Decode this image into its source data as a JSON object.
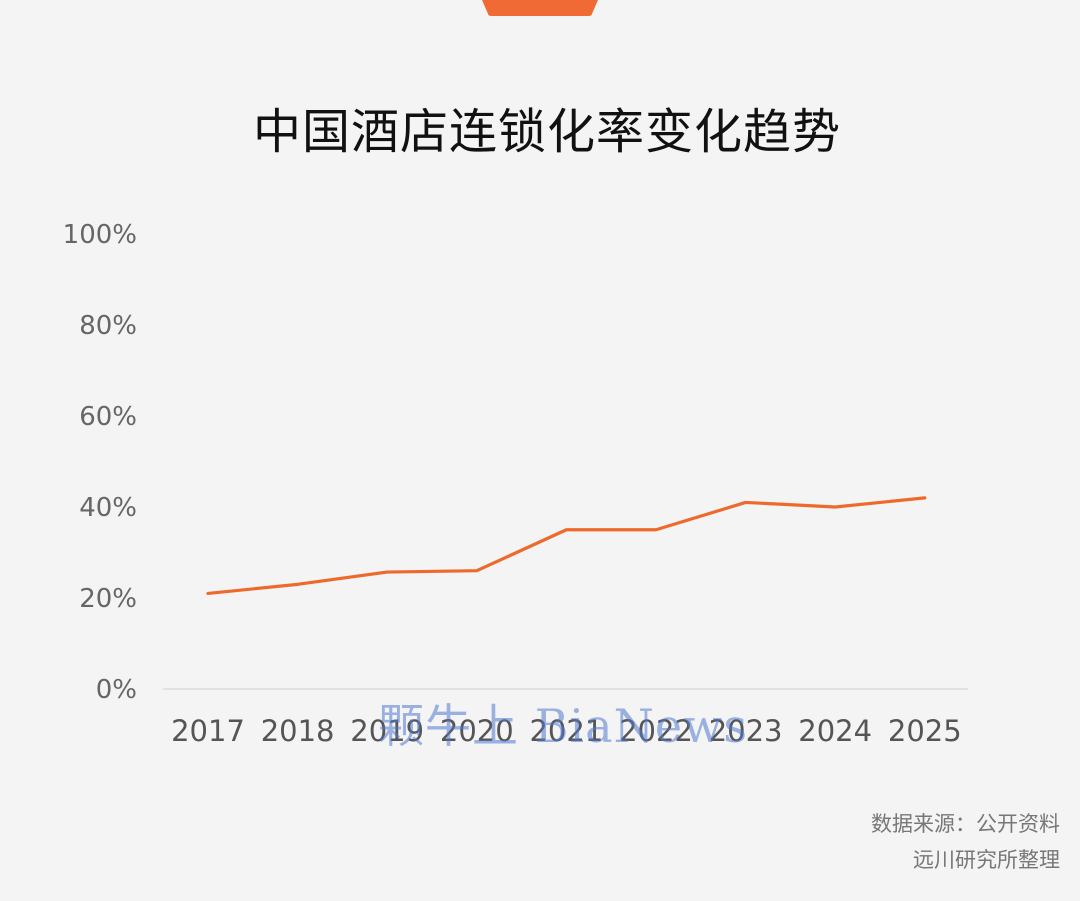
{
  "chart_data": {
    "type": "line",
    "title": "中国酒店连锁化率变化趋势",
    "x": [
      "2017",
      "2018",
      "2019",
      "2020",
      "2021",
      "2022",
      "2023",
      "2024",
      "2025"
    ],
    "series": [
      {
        "values": [
          21,
          23,
          25.7,
          26,
          35,
          35,
          41,
          40,
          42
        ]
      }
    ],
    "ylim": [
      0,
      100
    ],
    "yticks": [
      "0%",
      "20%",
      "40%",
      "60%",
      "80%",
      "100%"
    ],
    "ytick_values": [
      0,
      20,
      40,
      60,
      80,
      100
    ],
    "grid": "baseline only",
    "legend": "none",
    "colors": {
      "series": "#ee6a2c",
      "accent": "#f06a35"
    }
  },
  "watermark": "颗牛上 BiaNews",
  "source": {
    "line1": "数据来源：公开资料",
    "line2": "远川研究所整理"
  }
}
